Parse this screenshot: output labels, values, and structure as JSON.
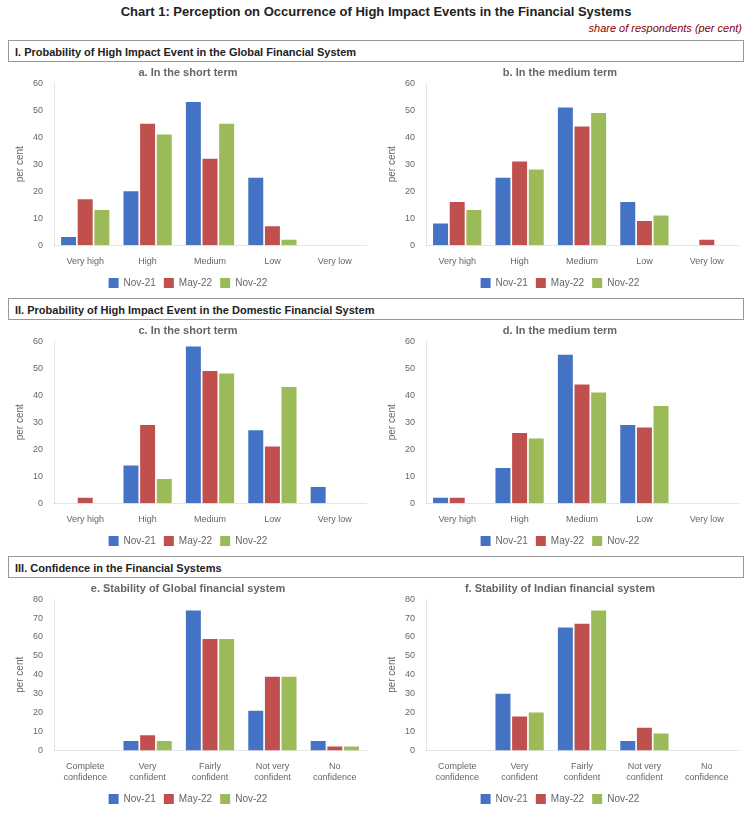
{
  "title": "Chart 1: Perception on Occurrence of High Impact Events in the Financial Systems",
  "subtitle": "share of respondents (per cent)",
  "section_titles": [
    "I. Probability of High Impact Event in the Global Financial System",
    "II. Probability of High Impact Event in the Domestic Financial System",
    "III. Confidence in the Financial Systems"
  ],
  "chart_data": [
    {
      "type": "bar",
      "title": "a. In the short term",
      "ylabel": "per cent",
      "categories": [
        "Very high",
        "High",
        "Medium",
        "Low",
        "Very low"
      ],
      "series": [
        {
          "name": "Nov-21",
          "color": "#4472C4",
          "values": [
            3,
            20,
            53,
            25,
            0
          ]
        },
        {
          "name": "May-22",
          "color": "#C0504D",
          "values": [
            17,
            45,
            32,
            7,
            0
          ]
        },
        {
          "name": "Nov-22",
          "color": "#9BBB59",
          "values": [
            13,
            41,
            45,
            2,
            0
          ]
        }
      ],
      "ylim": [
        0,
        60
      ],
      "yticks": [
        0,
        10,
        20,
        30,
        40,
        50,
        60
      ],
      "grid": false,
      "legend": "bottom"
    },
    {
      "type": "bar",
      "title": "b. In the medium term",
      "ylabel": "per cent",
      "categories": [
        "Very high",
        "High",
        "Medium",
        "Low",
        "Very low"
      ],
      "series": [
        {
          "name": "Nov-21",
          "color": "#4472C4",
          "values": [
            8,
            25,
            51,
            16,
            0
          ]
        },
        {
          "name": "May-22",
          "color": "#C0504D",
          "values": [
            16,
            31,
            44,
            9,
            2
          ]
        },
        {
          "name": "Nov-22",
          "color": "#9BBB59",
          "values": [
            13,
            28,
            49,
            11,
            0
          ]
        }
      ],
      "ylim": [
        0,
        60
      ],
      "yticks": [
        0,
        10,
        20,
        30,
        40,
        50,
        60
      ],
      "grid": false,
      "legend": "bottom"
    },
    {
      "type": "bar",
      "title": "c. In the short term",
      "ylabel": "per cent",
      "categories": [
        "Very high",
        "High",
        "Medium",
        "Low",
        "Very low"
      ],
      "series": [
        {
          "name": "Nov-21",
          "color": "#4472C4",
          "values": [
            0,
            14,
            58,
            27,
            6
          ]
        },
        {
          "name": "May-22",
          "color": "#C0504D",
          "values": [
            2,
            29,
            49,
            21,
            0
          ]
        },
        {
          "name": "Nov-22",
          "color": "#9BBB59",
          "values": [
            0,
            9,
            48,
            43,
            0
          ]
        }
      ],
      "ylim": [
        0,
        60
      ],
      "yticks": [
        0,
        10,
        20,
        30,
        40,
        50,
        60
      ],
      "grid": false,
      "legend": "bottom"
    },
    {
      "type": "bar",
      "title": "d. In the medium term",
      "ylabel": "per cent",
      "categories": [
        "Very high",
        "High",
        "Medium",
        "Low",
        "Very low"
      ],
      "series": [
        {
          "name": "Nov-21",
          "color": "#4472C4",
          "values": [
            2,
            13,
            55,
            29,
            0
          ]
        },
        {
          "name": "May-22",
          "color": "#C0504D",
          "values": [
            2,
            26,
            44,
            28,
            0
          ]
        },
        {
          "name": "Nov-22",
          "color": "#9BBB59",
          "values": [
            0,
            24,
            41,
            36,
            0
          ]
        }
      ],
      "ylim": [
        0,
        60
      ],
      "yticks": [
        0,
        10,
        20,
        30,
        40,
        50,
        60
      ],
      "grid": false,
      "legend": "bottom"
    },
    {
      "type": "bar",
      "title": "e. Stability of Global financial system",
      "ylabel": "per cent",
      "categories": [
        "Complete\nconfidence",
        "Very\nconfident",
        "Fairly\nconfident",
        "Not very\nconfident",
        "No\nconfidence"
      ],
      "series": [
        {
          "name": "Nov-21",
          "color": "#4472C4",
          "values": [
            0,
            5,
            74,
            21,
            5
          ]
        },
        {
          "name": "May-22",
          "color": "#C0504D",
          "values": [
            0,
            8,
            59,
            39,
            2
          ]
        },
        {
          "name": "Nov-22",
          "color": "#9BBB59",
          "values": [
            0,
            5,
            59,
            39,
            2
          ]
        }
      ],
      "ylim": [
        0,
        80
      ],
      "yticks": [
        0,
        10,
        20,
        30,
        40,
        50,
        60,
        70,
        80
      ],
      "grid": false,
      "legend": "bottom"
    },
    {
      "type": "bar",
      "title": "f. Stability of Indian financial system",
      "ylabel": "per cent",
      "categories": [
        "Complete\nconfidence",
        "Very\nconfident",
        "Fairly\nconfident",
        "Not very\nconfident",
        "No\nconfidence"
      ],
      "series": [
        {
          "name": "Nov-21",
          "color": "#4472C4",
          "values": [
            0,
            30,
            65,
            5,
            0
          ]
        },
        {
          "name": "May-22",
          "color": "#C0504D",
          "values": [
            0,
            18,
            67,
            12,
            0
          ]
        },
        {
          "name": "Nov-22",
          "color": "#9BBB59",
          "values": [
            0,
            20,
            74,
            9,
            0
          ]
        }
      ],
      "ylim": [
        0,
        80
      ],
      "yticks": [
        0,
        10,
        20,
        30,
        40,
        50,
        60,
        70,
        80
      ],
      "grid": false,
      "legend": "bottom"
    }
  ]
}
